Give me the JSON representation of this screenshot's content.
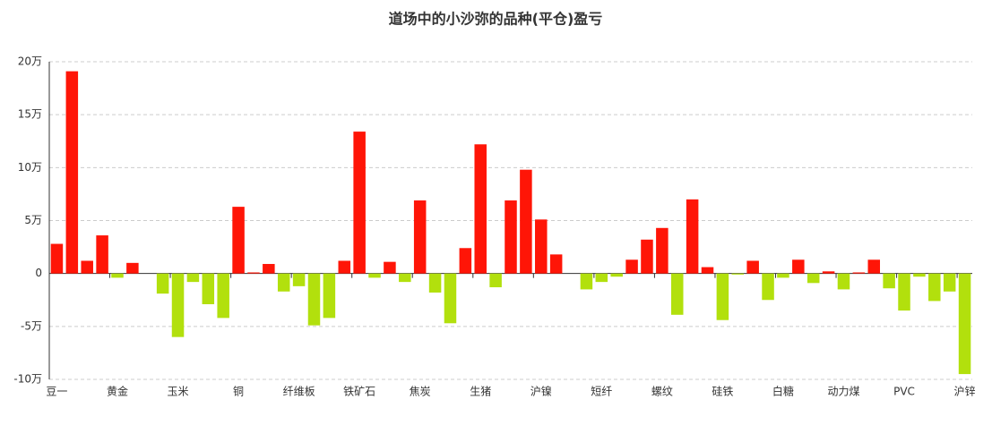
{
  "chart_data": {
    "type": "bar",
    "title": "道场中的小沙弥的品种(平仓)盈亏",
    "categories": [
      "豆一",
      null,
      null,
      null,
      "黄金",
      null,
      null,
      null,
      "玉米",
      null,
      null,
      null,
      "铜",
      null,
      null,
      null,
      "纤维板",
      null,
      null,
      null,
      "铁矿石",
      null,
      null,
      null,
      "焦炭",
      null,
      null,
      null,
      "生猪",
      null,
      null,
      null,
      "沪镍",
      null,
      null,
      null,
      "短纤",
      null,
      null,
      null,
      "螺纹",
      null,
      null,
      null,
      "硅铁",
      null,
      null,
      null,
      "白糖",
      null,
      null,
      null,
      "动力煤",
      null,
      null,
      null,
      "PVC",
      null,
      null,
      null,
      "沪锌"
    ],
    "values": [
      2.8,
      19.1,
      1.2,
      3.6,
      -0.4,
      1.0,
      0,
      -1.9,
      -6.0,
      -0.8,
      -2.9,
      -4.2,
      6.3,
      0.1,
      0.9,
      -1.7,
      -1.2,
      -4.9,
      -4.2,
      1.2,
      13.4,
      -0.4,
      1.1,
      -0.8,
      6.9,
      -1.8,
      -4.7,
      2.4,
      12.2,
      -1.3,
      6.9,
      9.8,
      5.1,
      1.8,
      0,
      -1.5,
      -0.8,
      -0.3,
      1.3,
      3.2,
      4.3,
      -3.9,
      7.0,
      0.6,
      -4.4,
      -0.1,
      1.2,
      -2.5,
      -0.4,
      1.3,
      -0.9,
      0.2,
      -1.5,
      0.1,
      1.3,
      -1.4,
      -3.5,
      -0.3,
      -2.6,
      -1.7,
      -9.5
    ],
    "positive_color": "#ff1507",
    "negative_color": "#b2e00d",
    "ylim": [
      -10,
      20
    ],
    "yticks": [
      {
        "value": -10,
        "label": "-10万"
      },
      {
        "value": -5,
        "label": "-5万"
      },
      0,
      {
        "value": 5,
        "label": "5万"
      },
      {
        "value": 10,
        "label": "10万"
      },
      {
        "value": 15,
        "label": "15万"
      },
      {
        "value": 20,
        "label": "20万"
      }
    ],
    "grid": true
  }
}
